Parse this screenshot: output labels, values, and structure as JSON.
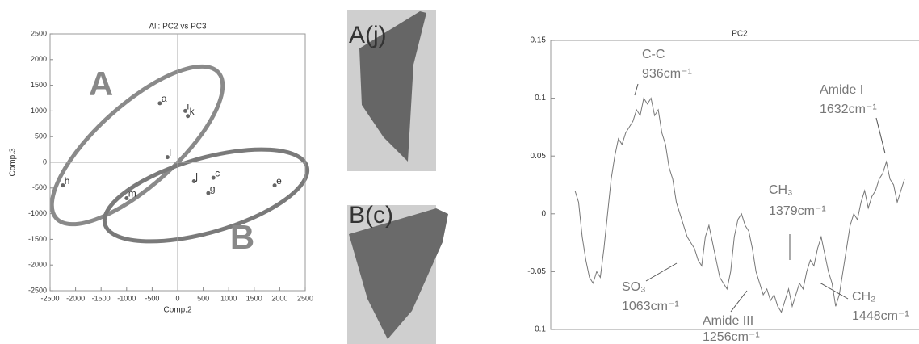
{
  "chart_data": [
    {
      "type": "scatter",
      "title": "All: PC2 vs PC3",
      "xlabel": "Comp.2",
      "ylabel": "Comp.3",
      "xlim": [
        -2500,
        2500
      ],
      "ylim": [
        -2500,
        2500
      ],
      "xticks": [
        -2500,
        -2000,
        -1500,
        -1000,
        -500,
        0,
        500,
        1000,
        1500,
        2000,
        2500
      ],
      "yticks": [
        -2500,
        -2000,
        -1500,
        -1000,
        -500,
        0,
        500,
        1000,
        1500,
        2000,
        2500
      ],
      "color": "#666666",
      "series": [
        {
          "labels": [
            "a",
            "i",
            "k",
            "l",
            "j",
            "c",
            "g",
            "e",
            "h",
            "m"
          ],
          "x": [
            -350,
            150,
            200,
            -200,
            320,
            700,
            600,
            1900,
            -2250,
            -1000
          ],
          "values": [
            1150,
            1000,
            900,
            100,
            -370,
            -300,
            -600,
            -450,
            -450,
            -700
          ]
        }
      ],
      "annotations": [
        "A",
        "B"
      ]
    },
    {
      "type": "line",
      "title": "PC2",
      "ylim": [
        -0.1,
        0.15
      ],
      "yticks": [
        -0.1,
        -0.05,
        0,
        0.05,
        0.1,
        0.15
      ],
      "series": [
        {
          "color": "#777777",
          "values": [
            0.02,
            0.01,
            -0.02,
            -0.04,
            -0.055,
            -0.06,
            -0.05,
            -0.055,
            -0.03,
            0.0,
            0.03,
            0.05,
            0.065,
            0.06,
            0.07,
            0.075,
            0.08,
            0.09,
            0.085,
            0.1,
            0.095,
            0.1,
            0.085,
            0.09,
            0.07,
            0.06,
            0.04,
            0.03,
            0.01,
            0.0,
            -0.01,
            -0.02,
            -0.025,
            -0.03,
            -0.04,
            -0.045,
            -0.02,
            -0.01,
            -0.025,
            -0.04,
            -0.055,
            -0.06,
            -0.065,
            -0.05,
            -0.02,
            -0.005,
            0.0,
            -0.01,
            -0.015,
            -0.03,
            -0.05,
            -0.06,
            -0.07,
            -0.065,
            -0.075,
            -0.07,
            -0.08,
            -0.085,
            -0.075,
            -0.065,
            -0.08,
            -0.07,
            -0.06,
            -0.065,
            -0.05,
            -0.04,
            -0.045,
            -0.03,
            -0.02,
            -0.035,
            -0.05,
            -0.06,
            -0.08,
            -0.07,
            -0.05,
            -0.03,
            -0.01,
            0.0,
            -0.005,
            0.01,
            0.02,
            0.005,
            0.015,
            0.02,
            0.03,
            0.035,
            0.045,
            0.03,
            0.025,
            0.01,
            0.02,
            0.03
          ]
        }
      ],
      "annotations": [
        [
          "C-C",
          "936cm⁻¹"
        ],
        [
          "SO₃",
          "1063cm⁻¹"
        ],
        [
          "Amide III",
          "1256cm⁻¹"
        ],
        [
          "CH₃",
          "1379cm⁻¹"
        ],
        [
          "CH₂",
          "1448cm⁻¹"
        ],
        [
          "Amide I",
          "1632cm⁻¹"
        ]
      ]
    }
  ],
  "images": [
    {
      "label": "A(j)"
    },
    {
      "label": "B(c)"
    }
  ]
}
